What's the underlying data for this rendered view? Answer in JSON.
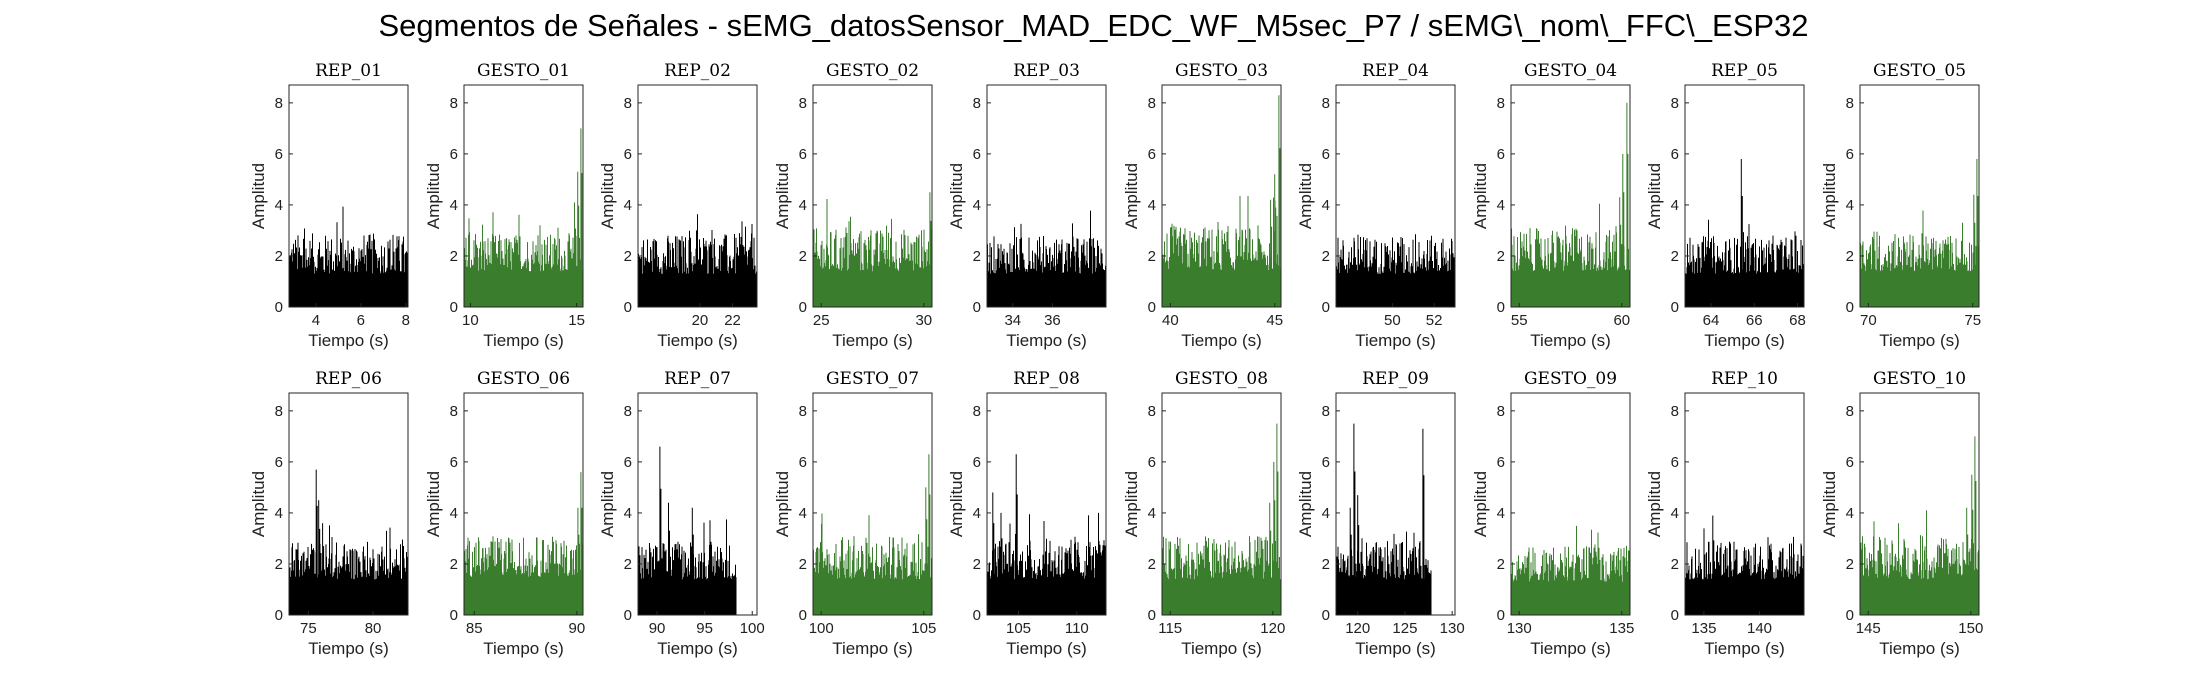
{
  "figure": {
    "title": "Segmentos de Señales - sEMG_datosSensor_MAD_EDC_WF_M5sec_P7 / sEMG\\_nom\\_FFC\\_ESP32",
    "xlabel": "Tiempo (s)",
    "ylabel": "Amplitud",
    "colors": {
      "rep": "#000000",
      "gesto": "#3a7d2c",
      "axes": "#262626"
    }
  },
  "chart_data": [
    {
      "type": "area",
      "title": "REP_01",
      "kind": "rep",
      "xlim": [
        2.8,
        8.1
      ],
      "ylim": [
        0,
        8.7
      ],
      "xticks": [
        4,
        6,
        8
      ],
      "yticks": [
        0,
        2,
        4,
        6,
        8
      ],
      "x": [
        2.8,
        8.1
      ],
      "baseline": 1.3,
      "noise": 1.6,
      "spikes": []
    },
    {
      "type": "area",
      "title": "GESTO_01",
      "kind": "gesto",
      "xlim": [
        9.7,
        15.3
      ],
      "ylim": [
        0,
        8.7
      ],
      "xticks": [
        10,
        15
      ],
      "yticks": [
        0,
        2,
        4,
        6,
        8
      ],
      "x": [
        9.7,
        15.3
      ],
      "baseline": 1.4,
      "noise": 1.5,
      "spikes": [
        [
          15.2,
          7.0
        ],
        [
          15.05,
          5.3
        ],
        [
          14.9,
          4.1
        ]
      ]
    },
    {
      "type": "area",
      "title": "REP_02",
      "kind": "rep",
      "xlim": [
        16.2,
        23.5
      ],
      "ylim": [
        0,
        8.7
      ],
      "xticks": [
        20,
        22
      ],
      "yticks": [
        0,
        2,
        4,
        6,
        8
      ],
      "x": [
        16.2,
        23.5
      ],
      "baseline": 1.3,
      "noise": 1.6,
      "spikes": []
    },
    {
      "type": "area",
      "title": "GESTO_02",
      "kind": "gesto",
      "xlim": [
        24.6,
        30.4
      ],
      "ylim": [
        0,
        8.7
      ],
      "xticks": [
        25,
        30
      ],
      "yticks": [
        0,
        2,
        4,
        6,
        8
      ],
      "x": [
        24.6,
        30.4
      ],
      "baseline": 1.4,
      "noise": 1.7,
      "spikes": [
        [
          30.3,
          4.5
        ]
      ]
    },
    {
      "type": "area",
      "title": "REP_03",
      "kind": "rep",
      "xlim": [
        32.7,
        38.7
      ],
      "ylim": [
        0,
        8.7
      ],
      "xticks": [
        34,
        36
      ],
      "yticks": [
        0,
        2,
        4,
        6,
        8
      ],
      "x": [
        32.7,
        38.7
      ],
      "baseline": 1.3,
      "noise": 1.5,
      "spikes": []
    },
    {
      "type": "area",
      "title": "GESTO_03",
      "kind": "gesto",
      "xlim": [
        39.6,
        45.3
      ],
      "ylim": [
        0,
        8.7
      ],
      "xticks": [
        40,
        45
      ],
      "yticks": [
        0,
        2,
        4,
        6,
        8
      ],
      "x": [
        39.6,
        45.3
      ],
      "baseline": 1.4,
      "noise": 1.8,
      "spikes": [
        [
          45.2,
          8.3
        ],
        [
          45.0,
          5.2
        ],
        [
          44.8,
          4.2
        ]
      ]
    },
    {
      "type": "area",
      "title": "REP_04",
      "kind": "rep",
      "xlim": [
        47.3,
        53.0
      ],
      "ylim": [
        0,
        8.7
      ],
      "xticks": [
        50,
        52
      ],
      "yticks": [
        0,
        2,
        4,
        6,
        8
      ],
      "x": [
        47.3,
        53.0
      ],
      "baseline": 1.3,
      "noise": 1.5,
      "spikes": []
    },
    {
      "type": "area",
      "title": "GESTO_04",
      "kind": "gesto",
      "xlim": [
        54.6,
        60.4
      ],
      "ylim": [
        0,
        8.7
      ],
      "xticks": [
        55,
        60
      ],
      "yticks": [
        0,
        2,
        4,
        6,
        8
      ],
      "x": [
        54.6,
        60.4
      ],
      "baseline": 1.4,
      "noise": 1.7,
      "spikes": [
        [
          60.25,
          8.0
        ],
        [
          60.05,
          6.0
        ],
        [
          59.9,
          4.3
        ]
      ]
    },
    {
      "type": "area",
      "title": "REP_05",
      "kind": "rep",
      "xlim": [
        62.8,
        68.3
      ],
      "ylim": [
        0,
        8.7
      ],
      "xticks": [
        64,
        66,
        68
      ],
      "yticks": [
        0,
        2,
        4,
        6,
        8
      ],
      "x": [
        62.8,
        68.3
      ],
      "baseline": 1.3,
      "noise": 1.5,
      "spikes": [
        [
          65.4,
          5.8
        ]
      ]
    },
    {
      "type": "area",
      "title": "GESTO_05",
      "kind": "gesto",
      "xlim": [
        69.6,
        75.3
      ],
      "ylim": [
        0,
        8.7
      ],
      "xticks": [
        70,
        75
      ],
      "yticks": [
        0,
        2,
        4,
        6,
        8
      ],
      "x": [
        69.6,
        75.3
      ],
      "baseline": 1.4,
      "noise": 1.5,
      "spikes": [
        [
          75.2,
          5.8
        ],
        [
          75.05,
          4.4
        ]
      ]
    },
    {
      "type": "area",
      "title": "REP_06",
      "kind": "rep",
      "xlim": [
        73.5,
        82.7
      ],
      "ylim": [
        0,
        8.7
      ],
      "xticks": [
        75,
        80
      ],
      "yticks": [
        0,
        2,
        4,
        6,
        8
      ],
      "x": [
        73.5,
        82.7
      ],
      "baseline": 1.4,
      "noise": 1.5,
      "spikes": [
        [
          75.6,
          5.7
        ],
        [
          75.8,
          4.5
        ],
        [
          76.1,
          3.6
        ]
      ]
    },
    {
      "type": "area",
      "title": "GESTO_06",
      "kind": "gesto",
      "xlim": [
        84.5,
        90.3
      ],
      "ylim": [
        0,
        8.7
      ],
      "xticks": [
        85,
        90
      ],
      "yticks": [
        0,
        2,
        4,
        6,
        8
      ],
      "x": [
        84.5,
        90.3
      ],
      "baseline": 1.5,
      "noise": 1.6,
      "spikes": [
        [
          90.2,
          5.6
        ],
        [
          90.05,
          4.2
        ]
      ]
    },
    {
      "type": "area",
      "title": "REP_07",
      "kind": "rep",
      "xlim": [
        88.0,
        100.5
      ],
      "ylim": [
        0,
        8.7
      ],
      "xticks": [
        90,
        95,
        100
      ],
      "yticks": [
        0,
        2,
        4,
        6,
        8
      ],
      "x": [
        88.0,
        98.3
      ],
      "baseline": 1.4,
      "noise": 1.5,
      "spikes": [
        [
          90.3,
          6.6
        ],
        [
          91.2,
          4.4
        ],
        [
          93.7,
          4.2
        ]
      ]
    },
    {
      "type": "area",
      "title": "GESTO_07",
      "kind": "gesto",
      "xlim": [
        99.6,
        105.4
      ],
      "ylim": [
        0,
        8.7
      ],
      "xticks": [
        100,
        105
      ],
      "yticks": [
        0,
        2,
        4,
        6,
        8
      ],
      "x": [
        99.6,
        105.4
      ],
      "baseline": 1.4,
      "noise": 1.7,
      "spikes": [
        [
          105.25,
          6.3
        ],
        [
          105.1,
          5.0
        ]
      ]
    },
    {
      "type": "area",
      "title": "REP_08",
      "kind": "rep",
      "xlim": [
        102.3,
        112.5
      ],
      "ylim": [
        0,
        8.7
      ],
      "xticks": [
        105,
        110
      ],
      "yticks": [
        0,
        2,
        4,
        6,
        8
      ],
      "x": [
        102.3,
        112.5
      ],
      "baseline": 1.4,
      "noise": 1.6,
      "spikes": [
        [
          104.8,
          6.3
        ],
        [
          102.8,
          4.8
        ],
        [
          103.5,
          4.0
        ]
      ]
    },
    {
      "type": "area",
      "title": "GESTO_08",
      "kind": "gesto",
      "xlim": [
        114.6,
        120.4
      ],
      "ylim": [
        0,
        8.7
      ],
      "xticks": [
        115,
        120
      ],
      "yticks": [
        0,
        2,
        4,
        6,
        8
      ],
      "x": [
        114.6,
        120.4
      ],
      "baseline": 1.4,
      "noise": 1.7,
      "spikes": [
        [
          120.2,
          7.5
        ],
        [
          120.05,
          6.0
        ],
        [
          119.85,
          4.4
        ]
      ]
    },
    {
      "type": "area",
      "title": "REP_09",
      "kind": "rep",
      "xlim": [
        117.7,
        130.3
      ],
      "ylim": [
        0,
        8.7
      ],
      "xticks": [
        120,
        125,
        130
      ],
      "yticks": [
        0,
        2,
        4,
        6,
        8
      ],
      "x": [
        117.7,
        127.8
      ],
      "baseline": 1.4,
      "noise": 1.5,
      "spikes": [
        [
          119.6,
          7.5
        ],
        [
          126.9,
          7.3
        ],
        [
          120.0,
          4.7
        ],
        [
          119.2,
          4.2
        ]
      ]
    },
    {
      "type": "area",
      "title": "GESTO_09",
      "kind": "gesto",
      "xlim": [
        129.6,
        135.4
      ],
      "ylim": [
        0,
        8.7
      ],
      "xticks": [
        130,
        135
      ],
      "yticks": [
        0,
        2,
        4,
        6,
        8
      ],
      "x": [
        129.6,
        135.4
      ],
      "baseline": 1.3,
      "noise": 1.4,
      "spikes": []
    },
    {
      "type": "area",
      "title": "REP_10",
      "kind": "rep",
      "xlim": [
        133.3,
        144.0
      ],
      "ylim": [
        0,
        8.7
      ],
      "xticks": [
        135,
        140
      ],
      "yticks": [
        0,
        2,
        4,
        6,
        8
      ],
      "x": [
        133.3,
        144.0
      ],
      "baseline": 1.4,
      "noise": 1.5,
      "spikes": [
        [
          135.8,
          3.9
        ]
      ]
    },
    {
      "type": "area",
      "title": "GESTO_10",
      "kind": "gesto",
      "xlim": [
        144.6,
        150.4
      ],
      "ylim": [
        0,
        8.7
      ],
      "xticks": [
        145,
        150
      ],
      "yticks": [
        0,
        2,
        4,
        6,
        8
      ],
      "x": [
        144.6,
        150.4
      ],
      "baseline": 1.4,
      "noise": 1.7,
      "spikes": [
        [
          150.2,
          7.0
        ],
        [
          150.05,
          5.5
        ],
        [
          149.8,
          4.2
        ]
      ]
    }
  ]
}
